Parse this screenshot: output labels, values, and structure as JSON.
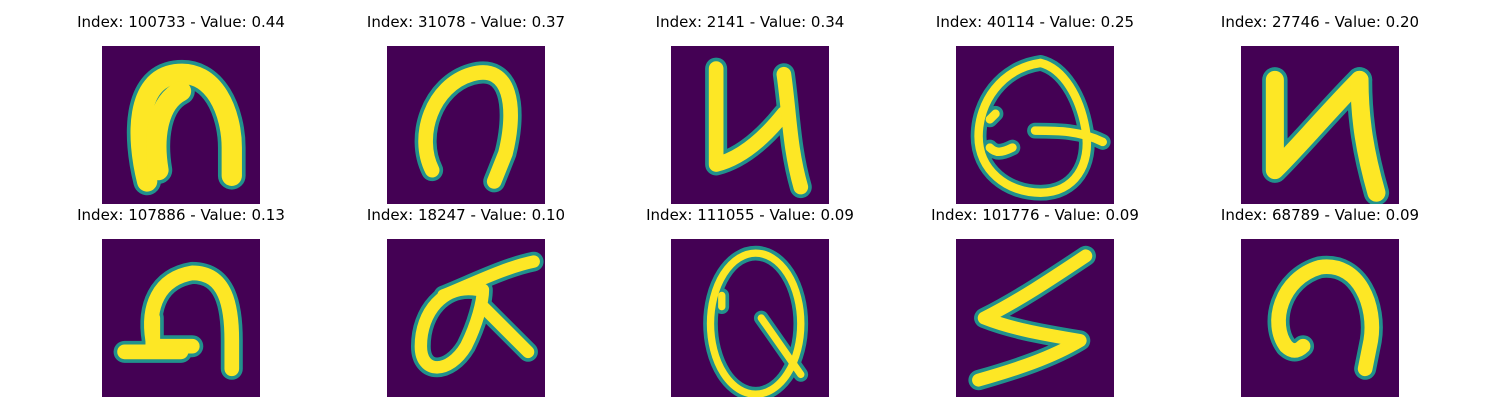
{
  "colors": {
    "background": "#440154",
    "glyph_core": "#fde725",
    "glyph_edge": "#21918c"
  },
  "panels": [
    {
      "title": "Index: 100733 - Value: 0.44",
      "index": 100733,
      "value": 0.44,
      "glyph": "n-bold"
    },
    {
      "title": "Index: 31078 - Value: 0.37",
      "index": 31078,
      "value": 0.37,
      "glyph": "n-curved"
    },
    {
      "title": "Index: 2141 - Value: 0.34",
      "index": 2141,
      "value": 0.34,
      "glyph": "u-shape"
    },
    {
      "title": "Index: 40114 - Value: 0.25",
      "index": 40114,
      "value": 0.25,
      "glyph": "circle-q"
    },
    {
      "title": "Index: 27746 - Value: 0.20",
      "index": 27746,
      "value": 0.2,
      "glyph": "n-angular"
    },
    {
      "title": "Index: 107886 - Value: 0.13",
      "index": 107886,
      "value": 0.13,
      "glyph": "n-loop"
    },
    {
      "title": "Index: 18247 - Value: 0.10",
      "index": 18247,
      "value": 0.1,
      "glyph": "alpha"
    },
    {
      "title": "Index: 111055 - Value: 0.09",
      "index": 111055,
      "value": 0.09,
      "glyph": "oval-q"
    },
    {
      "title": "Index: 101776 - Value: 0.09",
      "index": 101776,
      "value": 0.09,
      "glyph": "s-zigzag"
    },
    {
      "title": "Index: 68789 - Value: 0.09",
      "index": 68789,
      "value": 0.09,
      "glyph": "n-round"
    }
  ]
}
